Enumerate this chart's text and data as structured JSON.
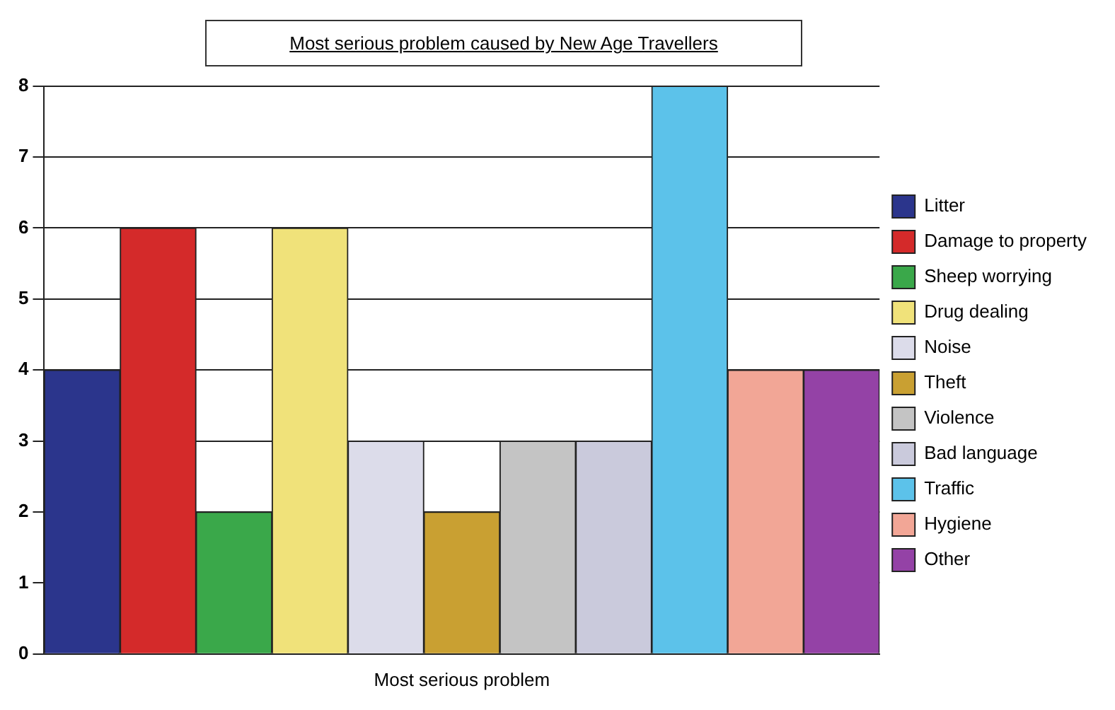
{
  "chart_data": {
    "type": "bar",
    "title": "Most serious problem caused by New Age Travellers",
    "categories": [
      "Most serious problem"
    ],
    "series": [
      {
        "name": "Litter",
        "color": "#2b358c",
        "values": [
          4
        ]
      },
      {
        "name": "Damage to property",
        "color": "#d42a2a",
        "values": [
          6
        ]
      },
      {
        "name": "Sheep worrying",
        "color": "#3aa84a",
        "values": [
          2
        ]
      },
      {
        "name": "Drug dealing",
        "color": "#f0e27a",
        "values": [
          6
        ]
      },
      {
        "name": "Noise",
        "color": "#dcdcea",
        "values": [
          3
        ]
      },
      {
        "name": "Theft",
        "color": "#c9a032",
        "values": [
          2
        ]
      },
      {
        "name": "Violence",
        "color": "#c4c4c4",
        "values": [
          3
        ]
      },
      {
        "name": "Bad language",
        "color": "#cacadc",
        "values": [
          3
        ]
      },
      {
        "name": "Traffic",
        "color": "#5cc2ea",
        "values": [
          8
        ]
      },
      {
        "name": "Hygiene",
        "color": "#f2a696",
        "values": [
          4
        ]
      },
      {
        "name": "Other",
        "color": "#9442a6",
        "values": [
          4
        ]
      }
    ],
    "ylim": [
      0,
      8
    ],
    "yticks": [
      0,
      1,
      2,
      3,
      4,
      5,
      6,
      7,
      8
    ],
    "grid": "y",
    "legend": "right"
  }
}
